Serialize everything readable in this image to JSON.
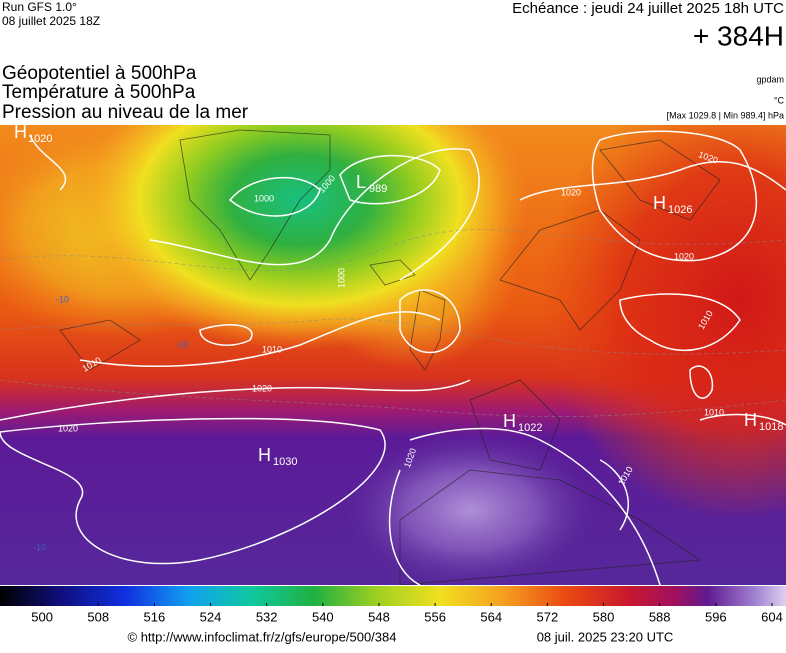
{
  "header": {
    "run": "Run GFS 1.0°",
    "run_date": "08 juillet 2025 18Z",
    "forecast_time": "Echéance : jeudi 24 juillet 2025 18h UTC",
    "lead": "+ 384H"
  },
  "titles": [
    "Géopotentiel à 500hPa",
    "Température à 500hPa",
    "Pression au niveau de la mer"
  ],
  "units": {
    "geopotential": "gpdam",
    "temperature": "°C",
    "pressure": "[Max 1029.8 | Min 989.4] hPa"
  },
  "pressure_centers": [
    {
      "type": "H",
      "value": 1020
    },
    {
      "type": "L",
      "value": 989
    },
    {
      "type": "H",
      "value": 1026
    },
    {
      "type": "H",
      "value": 1030
    },
    {
      "type": "H",
      "value": 1022
    },
    {
      "type": "H",
      "value": 1018
    }
  ],
  "isobar_labels": [
    1000,
    1000,
    1000,
    1010,
    1010,
    1020,
    1020,
    1020,
    1020,
    1020,
    1010,
    1010,
    1020,
    1010
  ],
  "temperature_labels": [
    -10,
    -10,
    -10
  ],
  "colorbar": {
    "range": [
      494,
      606
    ],
    "ticks": [
      500,
      508,
      516,
      524,
      532,
      540,
      548,
      556,
      564,
      572,
      580,
      588,
      596,
      604
    ]
  },
  "footer": {
    "url": "© http://www.infoclimat.fr/z/gfs/europe/500/384",
    "generated": "08 juil. 2025 23:20 UTC"
  }
}
